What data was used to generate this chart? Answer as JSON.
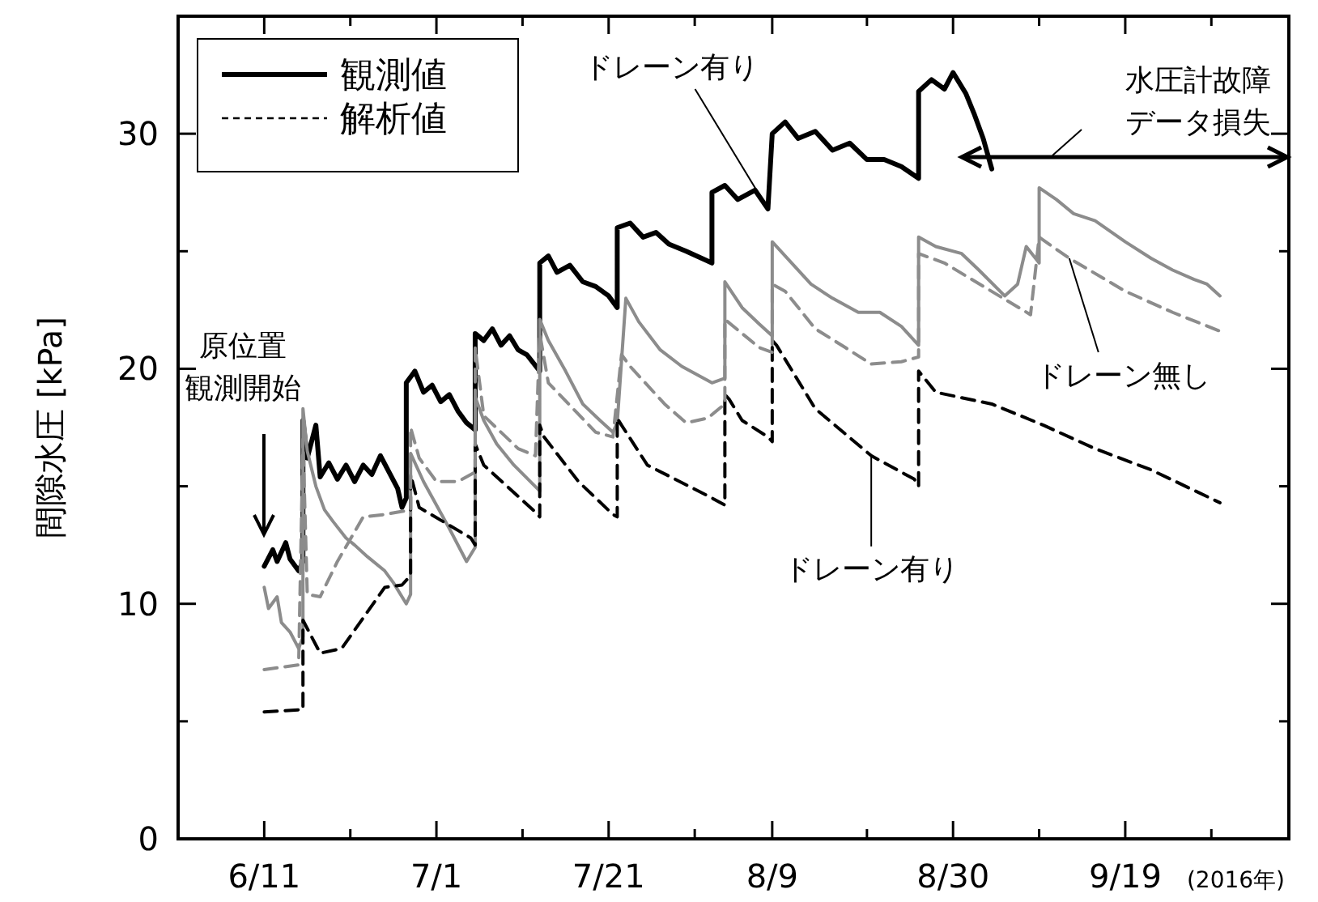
{
  "chart_data": {
    "type": "line",
    "ylabel": "間隙水圧 [kPa]",
    "xlim": [
      "2016-06-01",
      "2016-10-08"
    ],
    "ylim": [
      0,
      35
    ],
    "xticks": [
      {
        "value": "2016-06-11",
        "label": "6/11"
      },
      {
        "value": "2016-06-21",
        "label": null
      },
      {
        "value": "2016-07-01",
        "label": "7/1"
      },
      {
        "value": "2016-07-11",
        "label": null
      },
      {
        "value": "2016-07-21",
        "label": "7/21"
      },
      {
        "value": "2016-07-31",
        "label": null
      },
      {
        "value": "2016-08-09",
        "label": "8/9"
      },
      {
        "value": "2016-08-20",
        "label": null
      },
      {
        "value": "2016-08-30",
        "label": "8/30"
      },
      {
        "value": "2016-09-09",
        "label": null
      },
      {
        "value": "2016-09-19",
        "label": "9/19"
      },
      {
        "value": "2016-09-29",
        "label": null
      }
    ],
    "yticks": [
      0,
      {
        "value": 5,
        "label": null
      },
      10,
      {
        "value": 15,
        "label": null
      },
      20,
      {
        "value": 25,
        "label": null
      },
      30
    ],
    "grid": false,
    "legend": "top left",
    "marker": "none",
    "series": [
      {
        "name": "観測値",
        "color": "#000000",
        "line_style": "solid",
        "x": [
          "2016-06-11",
          "2016-06-12",
          "2016-06-12T12:00",
          "2016-06-13T12:00",
          "2016-06-14",
          "2016-06-15",
          "2016-06-15T12:00",
          "2016-06-15T12:00",
          "2016-06-16",
          "2016-06-17",
          "2016-06-17T12:00",
          "2016-06-18T12:00",
          "2016-06-19T12:00",
          "2016-06-20T12:00",
          "2016-06-21T12:00",
          "2016-06-22T12:00",
          "2016-06-23T12:00",
          "2016-06-24T12:00",
          "2016-06-25T12:00",
          "2016-06-26T12:00",
          "2016-06-27",
          "2016-06-27T12:00",
          "2016-06-27T12:00",
          "2016-06-28T12:00",
          "2016-06-29T12:00",
          "2016-06-30T12:00",
          "2016-07-01T12:00",
          "2016-07-02T12:00",
          "2016-07-03T12:00",
          "2016-07-04T12:00",
          "2016-07-05T12:00",
          "2016-07-05T12:00",
          "2016-07-06T12:00",
          "2016-07-07T12:00",
          "2016-07-08T12:00",
          "2016-07-09T12:00",
          "2016-07-10T12:00",
          "2016-07-11T12:00",
          "2016-07-13",
          "2016-07-13",
          "2016-07-14",
          "2016-07-15",
          "2016-07-16T12:00",
          "2016-07-18",
          "2016-07-19T12:00",
          "2016-07-21",
          "2016-07-22",
          "2016-07-22",
          "2016-07-23T12:00",
          "2016-07-25",
          "2016-07-26T12:00",
          "2016-07-28",
          "2016-07-30",
          "2016-08-02",
          "2016-08-02",
          "2016-08-03T12:00",
          "2016-08-05",
          "2016-08-07",
          "2016-08-08T12:00",
          "2016-08-09",
          "2016-08-10T12:00",
          "2016-08-12",
          "2016-08-14",
          "2016-08-16",
          "2016-08-18",
          "2016-08-20",
          "2016-08-22",
          "2016-08-24",
          "2016-08-26",
          "2016-08-26",
          "2016-08-27T12:00",
          "2016-08-29",
          "2016-08-30",
          "2016-08-31T12:00",
          "2016-09-01T12:00",
          "2016-09-02T12:00",
          "2016-09-03T12:00"
        ],
        "values": [
          11.6,
          12.3,
          11.8,
          12.6,
          11.9,
          11.4,
          11.8,
          17.8,
          16.2,
          17.6,
          15.4,
          16,
          15.3,
          15.9,
          15.2,
          15.9,
          15.5,
          16.3,
          15.6,
          14.9,
          14.1,
          14.5,
          19.4,
          19.9,
          19,
          19.3,
          18.6,
          18.9,
          18.2,
          17.7,
          17.4,
          21.5,
          21.2,
          21.7,
          21,
          21.4,
          20.8,
          20.6,
          19.9,
          24.5,
          24.8,
          24.1,
          24.4,
          23.7,
          23.5,
          23.1,
          22.6,
          26,
          26.2,
          25.6,
          25.8,
          25.3,
          25,
          24.5,
          27.5,
          27.8,
          27.2,
          27.6,
          26.8,
          30,
          30.5,
          29.8,
          30.1,
          29.3,
          29.6,
          28.9,
          28.9,
          28.6,
          28.1,
          31.8,
          32.3,
          31.9,
          32.6,
          31.7,
          30.8,
          29.8,
          28.5
        ]
      },
      {
        "color": "#8c8c8c",
        "line_style": "solid",
        "x": [
          "2016-06-11",
          "2016-06-11T12:00",
          "2016-06-12T12:00",
          "2016-06-13",
          "2016-06-14",
          "2016-06-15",
          "2016-06-15T12:00",
          "2016-06-15T12:00",
          "2016-06-16",
          "2016-06-17",
          "2016-06-18",
          "2016-06-19",
          "2016-06-20T12:00",
          "2016-06-21T12:00",
          "2016-06-23",
          "2016-06-25",
          "2016-06-26",
          "2016-06-27T12:00",
          "2016-06-28",
          "2016-06-28",
          "2016-06-29T12:00",
          "2016-07-01",
          "2016-07-02T12:00",
          "2016-07-04T12:00",
          "2016-07-05T12:00",
          "2016-07-05T12:00",
          "2016-07-06T12:00",
          "2016-07-08",
          "2016-07-10",
          "2016-07-13",
          "2016-07-13",
          "2016-07-14",
          "2016-07-16",
          "2016-07-18",
          "2016-07-20",
          "2016-07-21T12:00",
          "2016-07-22",
          "2016-07-23",
          "2016-07-24T12:00",
          "2016-07-27",
          "2016-07-29T12:00",
          "2016-08-02",
          "2016-08-03T12:00",
          "2016-08-03T12:00",
          "2016-08-05T12:00",
          "2016-08-07T12:00",
          "2016-08-09",
          "2016-08-09",
          "2016-08-11",
          "2016-08-13T12:00",
          "2016-08-16",
          "2016-08-19",
          "2016-08-21T12:00",
          "2016-08-24",
          "2016-08-26",
          "2016-08-26",
          "2016-08-28",
          "2016-08-31",
          "2016-09-02",
          "2016-09-05",
          "2016-09-06T12:00",
          "2016-09-07T12:00",
          "2016-09-09",
          "2016-09-09",
          "2016-09-11",
          "2016-09-13",
          "2016-09-15T12:00",
          "2016-09-19",
          "2016-09-22",
          "2016-09-24T12:00",
          "2016-09-27",
          "2016-09-28T12:00",
          "2016-09-30"
        ],
        "values": [
          10.7,
          9.8,
          10.3,
          9.2,
          8.8,
          8.1,
          8.6,
          18.3,
          16.5,
          15,
          14,
          13.5,
          12.8,
          12.5,
          12,
          11.4,
          10.9,
          10,
          10.4,
          16.4,
          15.2,
          14.2,
          13.2,
          11.8,
          12.4,
          18.8,
          17.8,
          16.8,
          15.9,
          14.8,
          22.1,
          21.2,
          19.9,
          18.5,
          17.8,
          17.3,
          17.7,
          23,
          22,
          20.8,
          20.1,
          19.4,
          19.6,
          23.7,
          22.6,
          21.9,
          21.4,
          25.4,
          24.6,
          23.6,
          23,
          22.4,
          22.4,
          21.8,
          21,
          25.6,
          25.2,
          24.9,
          24.2,
          23.1,
          23.6,
          25.2,
          24.5,
          27.7,
          27.2,
          26.6,
          26.3,
          25.4,
          24.7,
          24.2,
          23.8,
          23.6,
          23.1
        ]
      },
      {
        "name": "解析値",
        "color": "#000000",
        "line_style": "dashed",
        "x": [
          "2016-06-11",
          "2016-06-15T12:00",
          "2016-06-15T12:00",
          "2016-06-17T12:00",
          "2016-06-20",
          "2016-06-25",
          "2016-06-27",
          "2016-06-28",
          "2016-06-28",
          "2016-06-29",
          "2016-07-05",
          "2016-07-05T12:00",
          "2016-07-05T12:00",
          "2016-07-06T12:00",
          "2016-07-12T12:00",
          "2016-07-13",
          "2016-07-13",
          "2016-07-13T12:00",
          "2016-07-17T12:00",
          "2016-07-21T12:00",
          "2016-07-22",
          "2016-07-22",
          "2016-07-22T12:00",
          "2016-07-25T12:00",
          "2016-08-01T12:00",
          "2016-08-03T12:00",
          "2016-08-03T12:00",
          "2016-08-04",
          "2016-08-05T12:00",
          "2016-08-08T12:00",
          "2016-08-09",
          "2016-08-09",
          "2016-08-09T12:00",
          "2016-08-14",
          "2016-08-20T12:00",
          "2016-08-25T12:00",
          "2016-08-26",
          "2016-08-26",
          "2016-08-28",
          "2016-09-03T12:00",
          "2016-09-09T12:00",
          "2016-09-15T12:00",
          "2016-09-22",
          "2016-09-30"
        ],
        "values": [
          5.4,
          5.5,
          9.3,
          7.9,
          8.1,
          10.7,
          10.8,
          11.2,
          15.5,
          14.1,
          12.8,
          12.5,
          16.8,
          15.9,
          13.9,
          13.7,
          17.6,
          17.1,
          15.2,
          13.8,
          13.7,
          17.9,
          17.6,
          15.9,
          14.6,
          14.2,
          18.9,
          18.7,
          17.8,
          17.1,
          16.9,
          21.2,
          21,
          18.3,
          16.3,
          15.3,
          15,
          19.9,
          19,
          18.5,
          17.6,
          16.6,
          15.7,
          14.3
        ]
      },
      {
        "color": "#8c8c8c",
        "line_style": "dashed",
        "x": [
          "2016-06-11",
          "2016-06-15",
          "2016-06-15T12:00",
          "2016-06-16",
          "2016-06-17T12:00",
          "2016-06-19T12:00",
          "2016-06-22T12:00",
          "2016-06-25",
          "2016-06-28",
          "2016-06-28",
          "2016-06-29",
          "2016-07-01",
          "2016-07-03T12:00",
          "2016-07-05T12:00",
          "2016-07-05T12:00",
          "2016-07-06T12:00",
          "2016-07-10T12:00",
          "2016-07-12T12:00",
          "2016-07-13",
          "2016-07-14",
          "2016-07-19T12:00",
          "2016-07-21T12:00",
          "2016-07-22T12:00",
          "2016-07-23T12:00",
          "2016-07-27T12:00",
          "2016-07-30",
          "2016-08-01T12:00",
          "2016-08-03T12:00",
          "2016-08-03T12:00",
          "2016-08-07T12:00",
          "2016-08-09",
          "2016-08-09",
          "2016-08-10T12:00",
          "2016-08-14",
          "2016-08-17T12:00",
          "2016-08-20T12:00",
          "2016-08-24",
          "2016-08-26",
          "2016-08-26",
          "2016-08-27T12:00",
          "2016-08-29",
          "2016-09-08",
          "2016-09-09",
          "2016-09-12T12:00",
          "2016-09-19",
          "2016-09-24T12:00",
          "2016-09-30"
        ],
        "values": [
          7.2,
          7.4,
          17,
          10.4,
          10.3,
          11.8,
          13.7,
          13.8,
          14,
          17.5,
          16.2,
          15.2,
          15.2,
          15.6,
          20.9,
          18,
          16.6,
          16.3,
          21.5,
          19.4,
          17.3,
          17.1,
          20.6,
          20.1,
          18.5,
          17.7,
          17.9,
          18.5,
          22.1,
          20.9,
          20.7,
          23.6,
          23.3,
          21.7,
          20.9,
          20.2,
          20.3,
          20.5,
          24.9,
          24.7,
          24.5,
          22.3,
          25.6,
          24.7,
          23.3,
          22.4,
          21.6
        ]
      }
    ],
    "annotations": [
      "原位置観測開始",
      {
        "text": "ドレーン有り",
        "x": "2016-08-08T12:00",
        "y": 26.8
      },
      {
        "text": "ドレーン有り",
        "x": "2016-08-20T12:00",
        "y": 16.3
      },
      {
        "text": "ドレーン無し",
        "x": "2016-09-12T12:00",
        "y": 24.7
      },
      "水圧計故障データ損失",
      "(2016年)"
    ]
  }
}
